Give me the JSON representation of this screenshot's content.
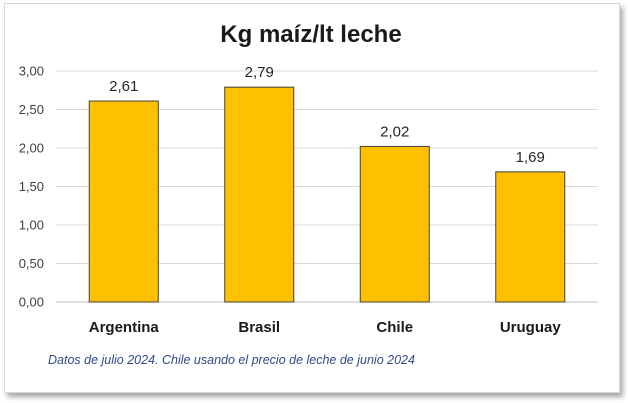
{
  "chart_data": {
    "type": "bar",
    "title": "Kg maíz/lt leche",
    "categories": [
      "Argentina",
      "Brasil",
      "Chile",
      "Uruguay"
    ],
    "values": [
      2.61,
      2.79,
      2.02,
      1.69
    ],
    "data_labels": [
      "2,61",
      "2,79",
      "2,02",
      "1,69"
    ],
    "ylim": [
      0,
      3
    ],
    "yticks": [
      0,
      0.5,
      1,
      1.5,
      2,
      2.5,
      3
    ],
    "ytick_labels": [
      "0,00",
      "0,50",
      "1,00",
      "1,50",
      "2,00",
      "2,50",
      "3,00"
    ],
    "xlabel": "",
    "ylabel": "",
    "grid": true,
    "bar_color": "#FFC000",
    "bar_edge_color": "#404040",
    "note": "Datos de julio 2024. Chile usando el precio de leche de junio 2024"
  }
}
